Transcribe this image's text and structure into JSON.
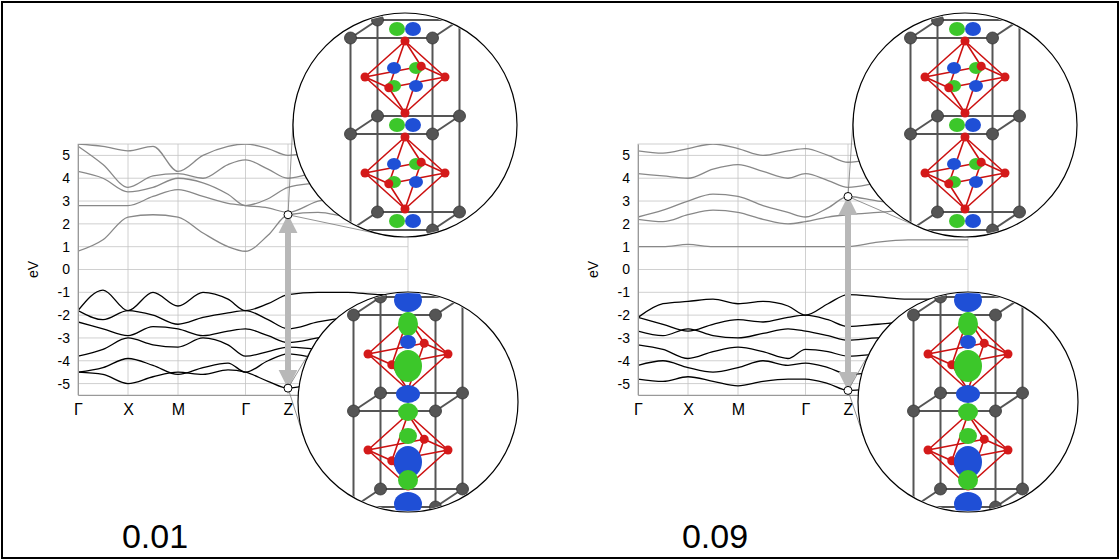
{
  "chart_data": [
    {
      "type": "line",
      "title": "0.01",
      "ylabel": "eV",
      "x": [
        0,
        0.5,
        1,
        1.5,
        2,
        2.5,
        3,
        3.35,
        3.8,
        4.2,
        4.8,
        5.4,
        6.0,
        6.6
      ],
      "xlim": [
        0,
        6.6
      ],
      "xticks": [
        {
          "value": 0,
          "label": "Γ"
        },
        {
          "value": 1,
          "label": "X"
        },
        {
          "value": 2,
          "label": "M"
        },
        {
          "value": 3.35,
          "label": "Γ"
        },
        {
          "value": 4.2,
          "label": "Z"
        }
      ],
      "ylim": [
        -5.5,
        5.5
      ],
      "yticks": [
        -5,
        -4,
        -3,
        -2,
        -1,
        0,
        1,
        2,
        3,
        4,
        5
      ],
      "grid": true,
      "series": [
        {
          "color": "#888888",
          "values": [
            0.8,
            1.3,
            2.3,
            2.4,
            2.3,
            1.6,
            1.0,
            0.8,
            1.5,
            2.4,
            2.5,
            2.3,
            2.2,
            2.1
          ]
        },
        {
          "color": "#888888",
          "values": [
            2.8,
            2.8,
            2.8,
            3.2,
            3.5,
            3.2,
            2.9,
            2.8,
            2.7,
            2.5,
            3.0,
            3.2,
            3.3,
            3.4
          ]
        },
        {
          "color": "#888888",
          "values": [
            4.3,
            4.0,
            3.4,
            3.6,
            4.0,
            3.8,
            3.3,
            2.8,
            3.1,
            3.6,
            3.8,
            4.0,
            4.1,
            4.2
          ]
        },
        {
          "color": "#888888",
          "values": [
            5.4,
            4.6,
            3.6,
            4.1,
            4.2,
            4.0,
            4.6,
            4.8,
            4.4,
            4.0,
            4.3,
            4.6,
            4.8,
            5.0
          ]
        },
        {
          "color": "#888888",
          "values": [
            5.5,
            5.4,
            5.2,
            5.4,
            4.3,
            5.0,
            5.4,
            5.5,
            5.3,
            5.0,
            5.2,
            5.4,
            5.4,
            5.5
          ]
        },
        {
          "color": "#000000",
          "values": [
            -1.8,
            -0.9,
            -1.8,
            -1.0,
            -1.6,
            -1.0,
            -1.3,
            -1.8,
            -1.5,
            -1.1,
            -1.0,
            -1.0,
            -1.1,
            -1.1
          ]
        },
        {
          "color": "#000000",
          "values": [
            -1.8,
            -2.2,
            -1.8,
            -2.0,
            -2.4,
            -2.1,
            -1.9,
            -1.8,
            -2.2,
            -2.6,
            -2.3,
            -2.1,
            -2.0,
            -2.0
          ]
        },
        {
          "color": "#000000",
          "values": [
            -2.3,
            -2.6,
            -2.9,
            -2.5,
            -2.6,
            -2.9,
            -2.7,
            -2.6,
            -2.9,
            -3.2,
            -3.0,
            -2.8,
            -2.7,
            -2.7
          ]
        },
        {
          "color": "#000000",
          "values": [
            -3.8,
            -3.5,
            -3.0,
            -3.3,
            -3.4,
            -3.0,
            -3.3,
            -3.8,
            -3.6,
            -3.4,
            -3.5,
            -3.6,
            -3.6,
            -3.6
          ]
        },
        {
          "color": "#000000",
          "values": [
            -4.5,
            -4.3,
            -3.9,
            -4.2,
            -4.6,
            -4.3,
            -4.1,
            -4.5,
            -4.0,
            -3.7,
            -3.9,
            -4.1,
            -4.2,
            -4.2
          ]
        },
        {
          "color": "#000000",
          "values": [
            -4.5,
            -4.6,
            -5.0,
            -4.7,
            -4.5,
            -4.6,
            -4.4,
            -4.5,
            -4.9,
            -5.2,
            -5.0,
            -4.9,
            -4.8,
            -4.8
          ]
        }
      ],
      "transition": {
        "x": 4.2,
        "y": [
          -5.2,
          2.4
        ]
      }
    },
    {
      "type": "line",
      "title": "0.09",
      "ylabel": "eV",
      "x": [
        0,
        0.5,
        1,
        1.5,
        2,
        2.5,
        3,
        3.35,
        3.8,
        4.2,
        4.8,
        5.4,
        6.0,
        6.6
      ],
      "xlim": [
        0,
        6.6
      ],
      "xticks": [
        {
          "value": 0,
          "label": "Γ"
        },
        {
          "value": 1,
          "label": "X"
        },
        {
          "value": 2,
          "label": "M"
        },
        {
          "value": 3.35,
          "label": "Γ"
        },
        {
          "value": 4.2,
          "label": "Z"
        }
      ],
      "ylim": [
        -5.5,
        5.5
      ],
      "yticks": [
        -5,
        -4,
        -3,
        -2,
        -1,
        0,
        1,
        2,
        3,
        4,
        5
      ],
      "grid": true,
      "series": [
        {
          "color": "#888888",
          "values": [
            1.0,
            1.0,
            1.1,
            1.0,
            1.0,
            1.0,
            1.0,
            1.0,
            1.0,
            1.0,
            1.2,
            1.3,
            1.3,
            1.3
          ]
        },
        {
          "color": "#888888",
          "values": [
            2.2,
            2.1,
            2.4,
            2.6,
            2.5,
            2.2,
            2.0,
            2.1,
            2.3,
            2.4,
            2.5,
            2.6,
            2.6,
            2.6
          ]
        },
        {
          "color": "#888888",
          "values": [
            2.3,
            2.6,
            3.0,
            3.3,
            3.2,
            2.8,
            2.5,
            2.3,
            2.7,
            3.2,
            3.0,
            2.9,
            2.9,
            2.9
          ]
        },
        {
          "color": "#888888",
          "values": [
            4.2,
            4.1,
            4.0,
            4.4,
            4.6,
            4.3,
            4.0,
            4.2,
            3.9,
            3.6,
            3.8,
            4.0,
            4.1,
            4.1
          ]
        },
        {
          "color": "#888888",
          "values": [
            5.2,
            5.1,
            5.3,
            5.5,
            5.3,
            5.0,
            5.2,
            5.3,
            5.0,
            4.7,
            4.9,
            5.1,
            5.2,
            5.2
          ]
        },
        {
          "color": "#000000",
          "values": [
            -2.1,
            -1.5,
            -1.4,
            -1.3,
            -1.5,
            -1.4,
            -1.6,
            -2.0,
            -1.5,
            -1.1,
            -1.2,
            -1.3,
            -1.3,
            -1.3
          ]
        },
        {
          "color": "#000000",
          "values": [
            -2.1,
            -2.4,
            -2.7,
            -2.4,
            -2.2,
            -2.3,
            -2.1,
            -2.0,
            -2.2,
            -2.5,
            -2.4,
            -2.3,
            -2.3,
            -2.3
          ]
        },
        {
          "color": "#000000",
          "values": [
            -2.7,
            -2.9,
            -2.6,
            -2.9,
            -3.0,
            -2.8,
            -2.6,
            -2.7,
            -2.9,
            -3.1,
            -3.0,
            -3.0,
            -3.0,
            -3.0
          ]
        },
        {
          "color": "#000000",
          "values": [
            -3.3,
            -3.5,
            -3.9,
            -3.6,
            -3.4,
            -3.6,
            -3.9,
            -3.5,
            -3.6,
            -3.8,
            -3.7,
            -3.6,
            -3.6,
            -3.6
          ]
        },
        {
          "color": "#000000",
          "values": [
            -4.2,
            -4.0,
            -4.3,
            -4.5,
            -4.3,
            -4.0,
            -4.2,
            -4.1,
            -4.3,
            -4.6,
            -4.5,
            -4.4,
            -4.4,
            -4.4
          ]
        },
        {
          "color": "#000000",
          "values": [
            -4.8,
            -4.9,
            -4.7,
            -4.9,
            -5.1,
            -4.9,
            -4.8,
            -4.8,
            -5.0,
            -5.3,
            -5.2,
            -5.1,
            -5.0,
            -5.0
          ]
        }
      ],
      "transition": {
        "x": 4.2,
        "y": [
          -5.3,
          3.2
        ]
      }
    }
  ]
}
